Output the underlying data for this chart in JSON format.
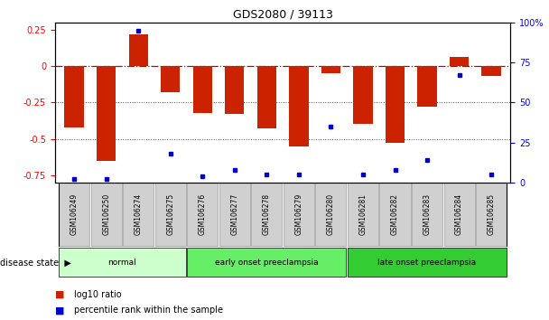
{
  "title": "GDS2080 / 39113",
  "samples": [
    "GSM106249",
    "GSM106250",
    "GSM106274",
    "GSM106275",
    "GSM106276",
    "GSM106277",
    "GSM106278",
    "GSM106279",
    "GSM106280",
    "GSM106281",
    "GSM106282",
    "GSM106283",
    "GSM106284",
    "GSM106285"
  ],
  "log10_ratio": [
    -0.42,
    -0.65,
    0.22,
    -0.18,
    -0.32,
    -0.33,
    -0.43,
    -0.55,
    -0.05,
    -0.4,
    -0.53,
    -0.28,
    0.06,
    -0.07
  ],
  "percentile_rank": [
    2,
    2,
    95,
    18,
    4,
    8,
    5,
    5,
    35,
    5,
    8,
    14,
    67,
    5
  ],
  "groups": [
    {
      "label": "normal",
      "start": 0,
      "end": 3,
      "color": "#ccffcc"
    },
    {
      "label": "early onset preeclampsia",
      "start": 4,
      "end": 8,
      "color": "#66ee66"
    },
    {
      "label": "late onset preeclampsia",
      "start": 9,
      "end": 13,
      "color": "#33cc33"
    }
  ],
  "bar_color": "#cc2200",
  "dot_color": "#0000cc",
  "bg_color": "#ffffff",
  "ylim_left": [
    -0.8,
    0.3
  ],
  "ylim_right": [
    0,
    100
  ],
  "hline_zero_color": "#cc0000",
  "hline_dotted_color": "#555555",
  "tick_label_fontsize": 5.5,
  "title_fontsize": 9,
  "legend_fontsize": 7
}
